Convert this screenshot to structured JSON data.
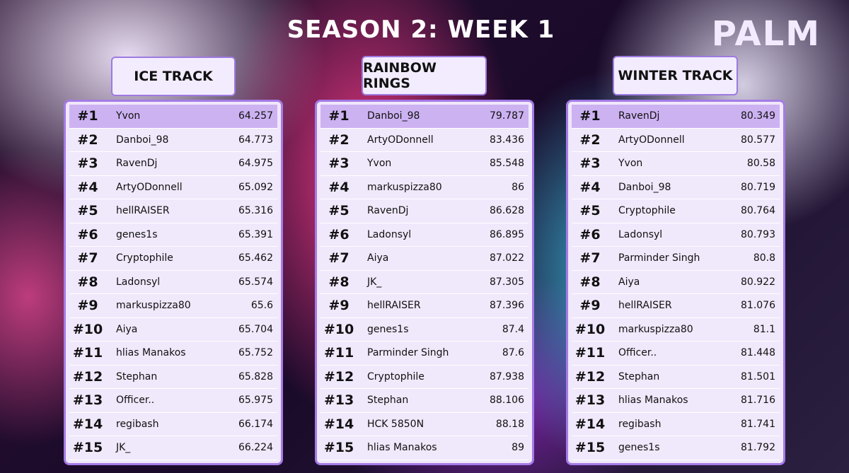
{
  "header": {
    "title": "SEASON 2: WEEK 1",
    "logo": "PALM"
  },
  "tracks": [
    {
      "name": "ICE TRACK",
      "rows": [
        [
          "#1",
          "Yvon",
          "64.257"
        ],
        [
          "#2",
          "Danboi_98",
          "64.773"
        ],
        [
          "#3",
          "RavenDj",
          "64.975"
        ],
        [
          "#4",
          "ArtyODonnell",
          "65.092"
        ],
        [
          "#5",
          "hellRAISER",
          "65.316"
        ],
        [
          "#6",
          "genes1s",
          "65.391"
        ],
        [
          "#7",
          "Cryptophile",
          "65.462"
        ],
        [
          "#8",
          "Ladonsyl",
          "65.574"
        ],
        [
          "#9",
          "markuspizza80",
          "65.6"
        ],
        [
          "#10",
          "Aiya",
          "65.704"
        ],
        [
          "#11",
          "hlias Manakos",
          "65.752"
        ],
        [
          "#12",
          "Stephan",
          "65.828"
        ],
        [
          "#13",
          "Officer..",
          "65.975"
        ],
        [
          "#14",
          "regibash",
          "66.174"
        ],
        [
          "#15",
          "JK_",
          "66.224"
        ]
      ]
    },
    {
      "name": "RAINBOW RINGS",
      "rows": [
        [
          "#1",
          "Danboi_98",
          "79.787"
        ],
        [
          "#2",
          "ArtyODonnell",
          "83.436"
        ],
        [
          "#3",
          "Yvon",
          "85.548"
        ],
        [
          "#4",
          "markuspizza80",
          "86"
        ],
        [
          "#5",
          "RavenDj",
          "86.628"
        ],
        [
          "#6",
          "Ladonsyl",
          "86.895"
        ],
        [
          "#7",
          "Aiya",
          "87.022"
        ],
        [
          "#8",
          "JK_",
          "87.305"
        ],
        [
          "#9",
          "hellRAISER",
          "87.396"
        ],
        [
          "#10",
          "genes1s",
          "87.4"
        ],
        [
          "#11",
          "Parminder Singh",
          "87.6"
        ],
        [
          "#12",
          "Cryptophile",
          "87.938"
        ],
        [
          "#13",
          "Stephan",
          "88.106"
        ],
        [
          "#14",
          "HCK 5850N",
          "88.18"
        ],
        [
          "#15",
          "hlias Manakos",
          "89"
        ]
      ]
    },
    {
      "name": "WINTER TRACK",
      "rows": [
        [
          "#1",
          "RavenDj",
          "80.349"
        ],
        [
          "#2",
          "ArtyODonnell",
          "80.577"
        ],
        [
          "#3",
          "Yvon",
          "80.58"
        ],
        [
          "#4",
          "Danboi_98",
          "80.719"
        ],
        [
          "#5",
          "Cryptophile",
          "80.764"
        ],
        [
          "#6",
          "Ladonsyl",
          "80.793"
        ],
        [
          "#7",
          "Parminder Singh",
          "80.8"
        ],
        [
          "#8",
          "Aiya",
          "80.922"
        ],
        [
          "#9",
          "hellRAISER",
          "81.076"
        ],
        [
          "#10",
          "markuspizza80",
          "81.1"
        ],
        [
          "#11",
          "Officer..",
          "81.448"
        ],
        [
          "#12",
          "Stephan",
          "81.501"
        ],
        [
          "#13",
          "hlias Manakos",
          "81.716"
        ],
        [
          "#14",
          "regibash",
          "81.741"
        ],
        [
          "#15",
          "genes1s",
          "81.792"
        ]
      ]
    }
  ]
}
